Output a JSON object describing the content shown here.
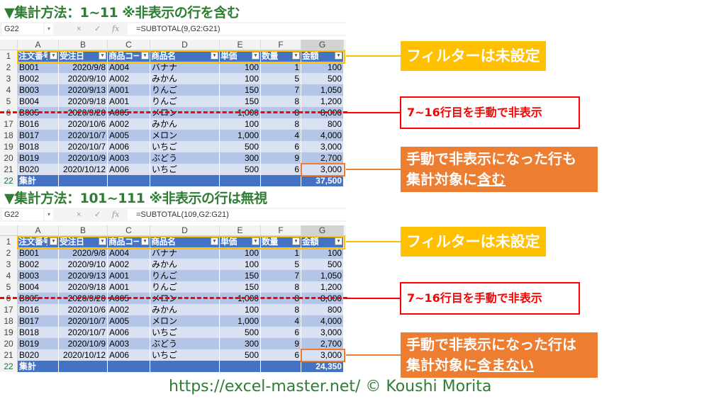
{
  "sections": [
    {
      "title": "▼集計方法：1~11 ※非表示の行を含む",
      "name_box": "G22",
      "formula": "=SUBTOTAL(9,G2:G21)",
      "total": "37,500",
      "callouts": {
        "filter": "フィルターは未設定",
        "hidden": "7~16行目を手動で非表示",
        "result_line1": "手動で非表示になった行も",
        "result_line2a": "集計対象に",
        "result_line2b": "含む"
      }
    },
    {
      "title": "▼集計方法：101~111 ※非表示の行は無視",
      "name_box": "G22",
      "formula": "=SUBTOTAL(109,G2:G21)",
      "total": "24,350",
      "callouts": {
        "filter": "フィルターは未設定",
        "hidden": "7~16行目を手動で非表示",
        "result_line1": "手動で非表示になった行は",
        "result_line2a": "集計対象に",
        "result_line2b": "含まない"
      }
    }
  ],
  "formula_bar_icons": {
    "cancel": "×",
    "enter": "✓",
    "fx": "fx",
    "dropdown": "▾"
  },
  "columns": [
    "A",
    "B",
    "C",
    "D",
    "E",
    "F",
    "G"
  ],
  "headers": [
    "注文番号",
    "受注日",
    "商品コード",
    "商品名",
    "単価",
    "数量",
    "金額"
  ],
  "total_label": "集計",
  "rows": [
    {
      "n": "2",
      "c": [
        "B001",
        "2020/9/8",
        "A004",
        "バナナ",
        "100",
        "1",
        "100"
      ]
    },
    {
      "n": "3",
      "c": [
        "B002",
        "2020/9/10",
        "A002",
        "みかん",
        "100",
        "5",
        "500"
      ]
    },
    {
      "n": "4",
      "c": [
        "B003",
        "2020/9/13",
        "A001",
        "りんご",
        "150",
        "7",
        "1,050"
      ]
    },
    {
      "n": "5",
      "c": [
        "B004",
        "2020/9/18",
        "A001",
        "りんご",
        "150",
        "8",
        "1,200"
      ]
    },
    {
      "n": "6",
      "c": [
        "B005",
        "2020/9/20",
        "A005",
        "メロン",
        "1,000",
        "8",
        "8,000"
      ]
    },
    {
      "n": "17",
      "c": [
        "B016",
        "2020/10/6",
        "A002",
        "みかん",
        "100",
        "8",
        "800"
      ]
    },
    {
      "n": "18",
      "c": [
        "B017",
        "2020/10/7",
        "A005",
        "メロン",
        "1,000",
        "4",
        "4,000"
      ]
    },
    {
      "n": "19",
      "c": [
        "B018",
        "2020/10/7",
        "A006",
        "いちご",
        "500",
        "6",
        "3,000"
      ]
    },
    {
      "n": "20",
      "c": [
        "B019",
        "2020/10/9",
        "A003",
        "ぶどう",
        "300",
        "9",
        "2,700"
      ]
    },
    {
      "n": "21",
      "c": [
        "B020",
        "2020/10/12",
        "A006",
        "いちご",
        "500",
        "6",
        "3,000"
      ]
    }
  ],
  "colors": {
    "header": "#4472c4",
    "band_dark": "#b4c6e7",
    "band_light": "#d9e1f2",
    "title": "#2e7d32",
    "filter_callout": "#ffc000",
    "hidden_callout": "#ff0000",
    "result_callout": "#ed7d31"
  },
  "footer": "https://excel-master.net/  © Koushi Morita"
}
